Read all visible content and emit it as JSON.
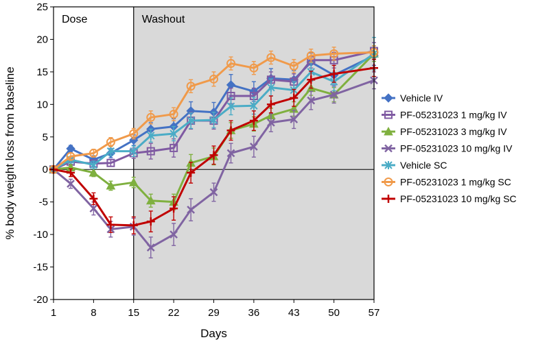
{
  "chart_data": {
    "type": "line",
    "xlabel": "Days",
    "ylabel": "% body weight loss from baseline",
    "xlim": [
      1,
      57
    ],
    "ylim": [
      -20,
      25
    ],
    "x_ticks": [
      1,
      8,
      15,
      22,
      29,
      36,
      43,
      50,
      57
    ],
    "y_ticks": [
      -20,
      -15,
      -10,
      -5,
      0,
      5,
      10,
      15,
      20,
      25
    ],
    "grid": false,
    "legend_position": "right",
    "regions": [
      {
        "label": "Dose",
        "x_start": 1,
        "x_end": 15,
        "fill": "#ffffff"
      },
      {
        "label": "Washout",
        "x_start": 15,
        "x_end": 57,
        "fill": "#d9d9d9"
      }
    ],
    "series": [
      {
        "name": "Vehicle IV",
        "color": "#4472c4",
        "marker": "diamond",
        "x": [
          1,
          4,
          8,
          11,
          15,
          18,
          22,
          25,
          29,
          32,
          36,
          39,
          43,
          46,
          50,
          57
        ],
        "y": [
          0,
          3.2,
          1.5,
          2.5,
          4.5,
          6.2,
          6.6,
          9.0,
          8.8,
          13.0,
          12.0,
          14.0,
          13.8,
          16.5,
          14.5,
          17.5
        ],
        "err": [
          0,
          0.5,
          0.6,
          0.7,
          0.8,
          1.0,
          1.2,
          1.4,
          1.5,
          1.6,
          1.5,
          1.5,
          1.4,
          1.4,
          1.5,
          1.5
        ]
      },
      {
        "name": "PF-05231023 1 mg/kg IV",
        "color": "#7f5aa2",
        "marker": "square",
        "x": [
          1,
          4,
          8,
          11,
          15,
          18,
          22,
          25,
          29,
          32,
          36,
          39,
          43,
          46,
          50,
          57
        ],
        "y": [
          0,
          1.2,
          0.9,
          1.0,
          2.5,
          2.8,
          3.3,
          7.5,
          7.5,
          11.3,
          11.3,
          13.8,
          13.5,
          16.8,
          16.8,
          18.2
        ],
        "err": [
          0,
          0.4,
          0.5,
          0.5,
          0.8,
          1.2,
          1.4,
          1.3,
          1.3,
          1.2,
          1.2,
          1.2,
          1.2,
          1.2,
          1.2,
          1.3
        ]
      },
      {
        "name": "PF-05231023 3 mg/kg IV",
        "color": "#7fb03f",
        "marker": "triangle",
        "x": [
          1,
          4,
          8,
          11,
          15,
          18,
          22,
          25,
          29,
          32,
          36,
          39,
          43,
          46,
          50,
          57
        ],
        "y": [
          0,
          0.3,
          -0.5,
          -2.5,
          -2.0,
          -4.8,
          -5.0,
          1.0,
          2.0,
          6.0,
          7.0,
          8.3,
          9.3,
          12.5,
          11.5,
          17.8
        ],
        "err": [
          0,
          0.4,
          0.6,
          0.7,
          0.8,
          1.0,
          1.2,
          1.3,
          1.3,
          1.2,
          1.1,
          1.1,
          1.1,
          1.1,
          1.1,
          1.2
        ]
      },
      {
        "name": "PF-05231023 10 mg/kg IV",
        "color": "#8064a2",
        "marker": "x",
        "x": [
          1,
          4,
          8,
          11,
          15,
          18,
          22,
          25,
          29,
          32,
          36,
          39,
          43,
          46,
          50,
          57
        ],
        "y": [
          0,
          -2.2,
          -6.0,
          -9.2,
          -8.8,
          -12.0,
          -10.0,
          -6.2,
          -3.5,
          2.5,
          3.5,
          7.2,
          7.7,
          10.6,
          11.5,
          13.7
        ],
        "err": [
          0,
          0.7,
          1.0,
          1.2,
          1.3,
          1.6,
          1.7,
          1.7,
          1.4,
          1.5,
          1.6,
          1.4,
          1.4,
          1.4,
          1.3,
          1.3
        ]
      },
      {
        "name": "Vehicle SC",
        "color": "#4bacc6",
        "marker": "asterisk",
        "x": [
          1,
          4,
          8,
          11,
          15,
          18,
          22,
          25,
          29,
          32,
          36,
          39,
          43,
          46,
          50,
          57
        ],
        "y": [
          0,
          1.5,
          0.7,
          2.8,
          2.8,
          5.2,
          5.5,
          7.5,
          7.6,
          9.7,
          9.8,
          12.6,
          12.2,
          15.0,
          13.5,
          17.8
        ],
        "err": [
          0,
          0.5,
          0.6,
          0.7,
          0.8,
          1.0,
          1.1,
          1.2,
          1.2,
          1.3,
          1.3,
          1.3,
          1.3,
          1.4,
          1.4,
          2.5
        ]
      },
      {
        "name": "PF-05231023 1 mg/kg SC",
        "color": "#f09a4a",
        "marker": "circle",
        "x": [
          1,
          4,
          8,
          11,
          15,
          18,
          22,
          25,
          29,
          32,
          36,
          39,
          43,
          46,
          50,
          57
        ],
        "y": [
          0,
          2.0,
          2.5,
          4.2,
          5.5,
          8.0,
          8.5,
          12.8,
          13.9,
          16.3,
          15.6,
          17.2,
          15.9,
          17.5,
          17.8,
          18.0
        ],
        "err": [
          0,
          0.5,
          0.6,
          0.7,
          0.8,
          1.0,
          1.0,
          1.0,
          1.1,
          1.0,
          1.0,
          1.0,
          1.0,
          1.0,
          1.0,
          1.0
        ]
      },
      {
        "name": "PF-05231023 10 mg/kg SC",
        "color": "#c00000",
        "marker": "plus",
        "x": [
          1,
          4,
          8,
          11,
          15,
          18,
          22,
          25,
          29,
          32,
          36,
          39,
          43,
          46,
          50,
          57
        ],
        "y": [
          0,
          -0.5,
          -4.5,
          -8.5,
          -8.6,
          -8.0,
          -6.0,
          -0.5,
          2.2,
          6.0,
          7.5,
          10.0,
          11.0,
          13.8,
          14.7,
          15.6
        ],
        "err": [
          0,
          0.6,
          0.9,
          1.2,
          1.3,
          1.6,
          1.8,
          1.6,
          1.4,
          1.5,
          1.5,
          1.3,
          1.3,
          1.3,
          1.3,
          1.3
        ]
      }
    ]
  }
}
